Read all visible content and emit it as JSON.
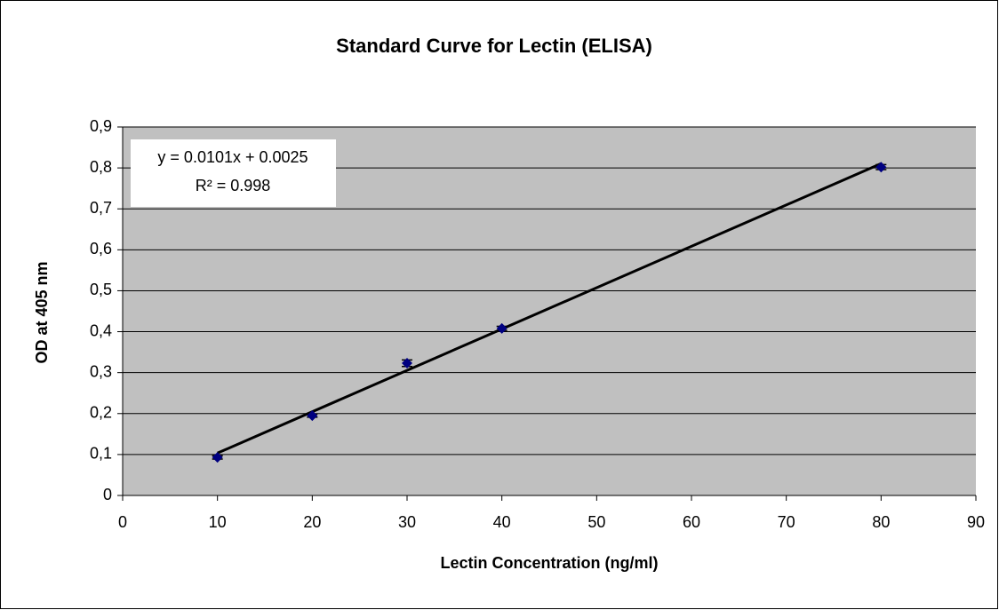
{
  "chart_data": {
    "type": "scatter",
    "title": "Standard Curve for Lectin (ELISA)",
    "x_label": "Lectin Concentration (ng/ml)",
    "y_label": "OD at 405 nm",
    "series": [
      {
        "color": "#000080",
        "x": [
          10,
          20,
          30,
          40,
          80
        ],
        "values": [
          0.093,
          0.195,
          0.323,
          0.408,
          0.802
        ],
        "errors": [
          0.004,
          0.004,
          0.008,
          0.005,
          0.006
        ]
      }
    ],
    "trendline": {
      "slope": 0.0101,
      "intercept": 0.0025,
      "equation": "y = 0.0101x + 0.0025",
      "r2": "R² = 0.998",
      "color": "#000000"
    },
    "xlim": [
      0,
      90
    ],
    "xticks": [
      0,
      10,
      20,
      30,
      40,
      50,
      60,
      70,
      80,
      90
    ],
    "ylim": [
      0,
      0.9
    ],
    "yticks": [
      0,
      {
        "value": 0.1,
        "label": "0,1"
      },
      {
        "value": 0.2,
        "label": "0,2"
      },
      {
        "value": 0.3,
        "label": "0,3"
      },
      {
        "value": 0.4,
        "label": "0,4"
      },
      {
        "value": 0.5,
        "label": "0,5"
      },
      {
        "value": 0.6,
        "label": "0,6"
      },
      {
        "value": 0.7,
        "label": "0,7"
      },
      {
        "value": 0.8,
        "label": "0,8"
      },
      {
        "value": 0.9,
        "label": "0,9"
      }
    ],
    "grid": true,
    "plot_background": "#c0c0c0"
  }
}
